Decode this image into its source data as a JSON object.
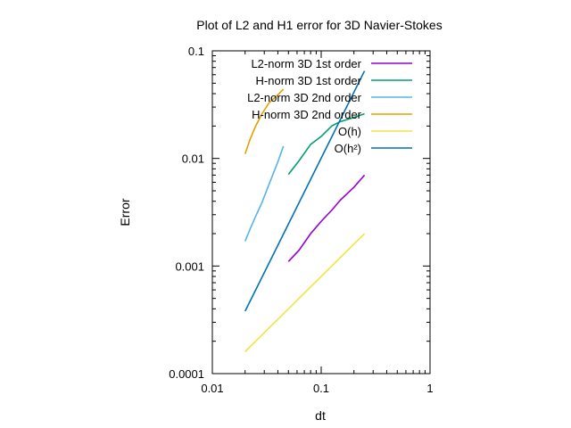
{
  "chart_data": {
    "type": "line",
    "title": "Plot of L2 and H1 error for 3D Navier-Stokes",
    "xlabel": "dt",
    "ylabel": "Error",
    "xscale": "log",
    "yscale": "log",
    "xlim": [
      0.01,
      1
    ],
    "ylim": [
      0.0001,
      0.1
    ],
    "grid": false,
    "legend_position": "top-right",
    "xticks": [
      {
        "value": 0.01,
        "label": "0.01"
      },
      {
        "value": 0.1,
        "label": "0.1"
      },
      {
        "value": 1,
        "label": "1"
      }
    ],
    "yticks": [
      {
        "value": 0.0001,
        "label": "0.0001"
      },
      {
        "value": 0.001,
        "label": "0.001"
      },
      {
        "value": 0.01,
        "label": "0.01"
      },
      {
        "value": 0.1,
        "label": "0.1"
      }
    ],
    "series": [
      {
        "name": "L2-norm 3D 1st order",
        "color": "#9400d3",
        "points": [
          [
            0.05,
            0.0011
          ],
          [
            0.0625,
            0.0014
          ],
          [
            0.08,
            0.002
          ],
          [
            0.1,
            0.0026
          ],
          [
            0.125,
            0.0033
          ],
          [
            0.15,
            0.0041
          ],
          [
            0.2,
            0.0054
          ],
          [
            0.25,
            0.007
          ]
        ]
      },
      {
        "name": "H-norm 3D 1st order",
        "color": "#009e73",
        "points": [
          [
            0.05,
            0.0071
          ],
          [
            0.0625,
            0.0095
          ],
          [
            0.08,
            0.0135
          ],
          [
            0.1,
            0.016
          ],
          [
            0.125,
            0.02
          ],
          [
            0.15,
            0.022
          ],
          [
            0.2,
            0.024
          ],
          [
            0.25,
            0.026
          ]
        ]
      },
      {
        "name": "L2-norm 3D 2nd order",
        "color": "#56b4e9",
        "points": [
          [
            0.02,
            0.0017
          ],
          [
            0.0222,
            0.0022
          ],
          [
            0.025,
            0.0029
          ],
          [
            0.0286,
            0.0039
          ],
          [
            0.0333,
            0.0058
          ],
          [
            0.04,
            0.0093
          ],
          [
            0.045,
            0.013
          ]
        ]
      },
      {
        "name": "H-norm 3D 2nd order",
        "color": "#e69f00",
        "points": [
          [
            0.02,
            0.011
          ],
          [
            0.0222,
            0.015
          ],
          [
            0.025,
            0.02
          ],
          [
            0.0286,
            0.026
          ],
          [
            0.0333,
            0.033
          ],
          [
            0.04,
            0.039
          ],
          [
            0.045,
            0.044
          ]
        ]
      },
      {
        "name": "O(h)",
        "color": "#f0e442",
        "points": [
          [
            0.02,
            0.00016
          ],
          [
            0.25,
            0.002
          ]
        ]
      },
      {
        "name": "O(h²)",
        "color": "#0072b2",
        "points": [
          [
            0.02,
            0.00038
          ],
          [
            0.25,
            0.065
          ]
        ]
      }
    ]
  }
}
